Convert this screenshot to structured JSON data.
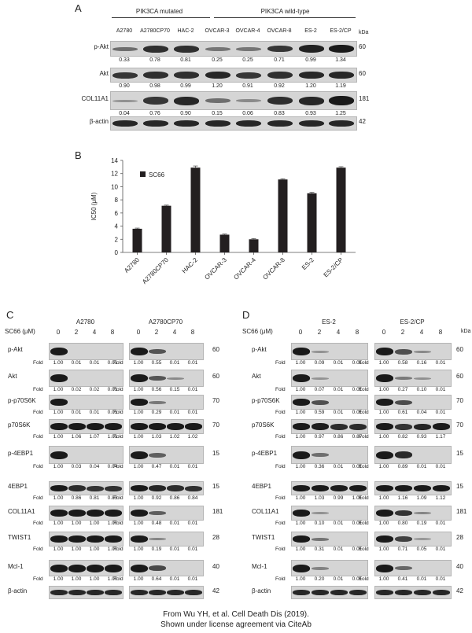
{
  "panelA": {
    "label": "A",
    "group_mutated": "PIK3CA  mutated",
    "group_wildtype": "PIK3CA  wild-type",
    "kda_header": "kDa",
    "lanes": [
      "A2780",
      "A2780CP70",
      "HAC-2",
      "OVCAR-3",
      "OVCAR-4",
      "OVCAR-8",
      "ES-2",
      "ES-2/CP"
    ],
    "rows": [
      {
        "name": "p-Akt",
        "kda": "60",
        "values": [
          "0.33",
          "0.78",
          "0.81",
          "0.25",
          "0.25",
          "0.71",
          "0.99",
          "1.34"
        ]
      },
      {
        "name": "Akt",
        "kda": "60",
        "values": [
          "0.90",
          "0.98",
          "0.99",
          "1.20",
          "0.91",
          "0.92",
          "1.20",
          "1.19"
        ]
      },
      {
        "name": "COL11A1",
        "kda": "181",
        "values": [
          "0.04",
          "0.76",
          "0.90",
          "0.15",
          "0.06",
          "0.83",
          "0.93",
          "1.25"
        ]
      },
      {
        "name": "β-actin",
        "kda": "42",
        "values": []
      }
    ]
  },
  "panelB": {
    "label": "B",
    "chart_data": {
      "type": "bar",
      "categories": [
        "A2780",
        "A2780CP70",
        "HAC-2",
        "OVCAR-3",
        "OVCAR-4",
        "OVCAR-8",
        "ES-2",
        "ES-2/CP"
      ],
      "values": [
        3.6,
        7.1,
        12.9,
        2.7,
        2.0,
        11.1,
        9.0,
        12.9
      ],
      "errors": [
        0.1,
        0.1,
        0.25,
        0.1,
        0.1,
        0.1,
        0.15,
        0.15
      ],
      "series": [
        {
          "name": "SC66",
          "values": [
            3.6,
            7.1,
            12.9,
            2.7,
            2.0,
            11.1,
            9.0,
            12.9
          ]
        }
      ],
      "ylabel": "IC50 (μM)",
      "ylim": [
        0,
        14
      ],
      "yticks": [
        "0",
        "2",
        "4",
        "6",
        "8",
        "10",
        "12",
        "14"
      ],
      "legend": "top-left",
      "grid": false,
      "color": "#231f20"
    }
  },
  "panelC": {
    "label": "C",
    "dose_label": "SC66 (μM)",
    "groups": [
      "A2780",
      "A2780CP70"
    ],
    "doses": [
      "0",
      "2",
      "4",
      "8"
    ],
    "fold_label": "Fold",
    "rows": [
      {
        "name": "p-Akt",
        "kda": "60",
        "left": [
          "1.00",
          "0.01",
          "0.01",
          "0.01"
        ],
        "right": [
          "1.00",
          "0.55",
          "0.01",
          "0.01"
        ]
      },
      {
        "name": "Akt",
        "kda": "60",
        "left": [
          "1.00",
          "0.02",
          "0.02",
          "0.01"
        ],
        "right": [
          "1.00",
          "0.56",
          "0.15",
          "0.01"
        ]
      },
      {
        "name": "p-p70S6K",
        "kda": "70",
        "left": [
          "1.00",
          "0.01",
          "0.01",
          "0.01"
        ],
        "right": [
          "1.00",
          "0.29",
          "0.01",
          "0.01"
        ]
      },
      {
        "name": "p70S6K",
        "kda": "70",
        "left": [
          "1.00",
          "1.06",
          "1.07",
          "1.01"
        ],
        "right": [
          "1.00",
          "1.03",
          "1.02",
          "1.02"
        ]
      },
      {
        "name": "p-4EBP1",
        "kda": "15",
        "left": [
          "1.00",
          "0.03",
          "0.04",
          "0.04"
        ],
        "right": [
          "1.00",
          "0.47",
          "0.01",
          "0.01"
        ]
      },
      {
        "name": "4EBP1",
        "kda": "15",
        "left": [
          "1.00",
          "0.86",
          "0.81",
          "0.83"
        ],
        "right": [
          "1.00",
          "0.92",
          "0.86",
          "0.84"
        ]
      },
      {
        "name": "COL11A1",
        "kda": "181",
        "left": [
          "1.00",
          "1.00",
          "1.00",
          "1.00"
        ],
        "right": [
          "1.00",
          "0.48",
          "0.01",
          "0.01"
        ]
      },
      {
        "name": "TWIST1",
        "kda": "28",
        "left": [
          "1.00",
          "1.00",
          "1.00",
          "1.00"
        ],
        "right": [
          "1.00",
          "0.19",
          "0.01",
          "0.01"
        ]
      },
      {
        "name": "Mcl-1",
        "kda": "40",
        "left": [
          "1.00",
          "1.00",
          "1.00",
          "1.00"
        ],
        "right": [
          "1.00",
          "0.64",
          "0.01",
          "0.01"
        ]
      },
      {
        "name": "β-actin",
        "kda": "42",
        "left": [],
        "right": []
      }
    ]
  },
  "panelD": {
    "label": "D",
    "dose_label": "SC66 (μM)",
    "groups": [
      "ES-2",
      "ES-2/CP"
    ],
    "doses": [
      "0",
      "2",
      "4",
      "8"
    ],
    "kda_header": "kDa",
    "fold_label": "Fold",
    "rows": [
      {
        "name": "p-Akt",
        "kda": "60",
        "left": [
          "1.00",
          "0.09",
          "0.01",
          "0.01"
        ],
        "right": [
          "1.00",
          "0.58",
          "0.16",
          "0.01"
        ]
      },
      {
        "name": "Akt",
        "kda": "60",
        "left": [
          "1.00",
          "0.07",
          "0.01",
          "0.01"
        ],
        "right": [
          "1.00",
          "0.27",
          "0.10",
          "0.01"
        ]
      },
      {
        "name": "p-p70S6K",
        "kda": "70",
        "left": [
          "1.00",
          "0.59",
          "0.01",
          "0.01"
        ],
        "right": [
          "1.00",
          "0.61",
          "0.04",
          "0.01"
        ]
      },
      {
        "name": "p70S6K",
        "kda": "70",
        "left": [
          "1.00",
          "0.97",
          "0.86",
          "0.87"
        ],
        "right": [
          "1.00",
          "0.82",
          "0.93",
          "1.17"
        ]
      },
      {
        "name": "p-4EBP1",
        "kda": "15",
        "left": [
          "1.00",
          "0.36",
          "0.01",
          "0.01"
        ],
        "right": [
          "1.00",
          "0.89",
          "0.01",
          "0.01"
        ]
      },
      {
        "name": "4EBP1",
        "kda": "15",
        "left": [
          "1.00",
          "1.03",
          "0.99",
          "1.01"
        ],
        "right": [
          "1.00",
          "1.16",
          "1.09",
          "1.12"
        ]
      },
      {
        "name": "COL11A1",
        "kda": "181",
        "left": [
          "1.00",
          "0.10",
          "0.01",
          "0.01"
        ],
        "right": [
          "1.00",
          "0.80",
          "0.19",
          "0.01"
        ]
      },
      {
        "name": "TWIST1",
        "kda": "28",
        "left": [
          "1.00",
          "0.31",
          "0.01",
          "0.01"
        ],
        "right": [
          "1.00",
          "0.71",
          "0.05",
          "0.01"
        ]
      },
      {
        "name": "Mcl-1",
        "kda": "40",
        "left": [
          "1.00",
          "0.20",
          "0.01",
          "0.01"
        ],
        "right": [
          "1.00",
          "0.41",
          "0.01",
          "0.01"
        ]
      },
      {
        "name": "β-actin",
        "kda": "42",
        "left": [],
        "right": []
      }
    ]
  },
  "credit": {
    "line1": "From Wu YH, et al. Cell Death Dis (2019).",
    "line2": "Shown under license agreement via CiteAb"
  }
}
